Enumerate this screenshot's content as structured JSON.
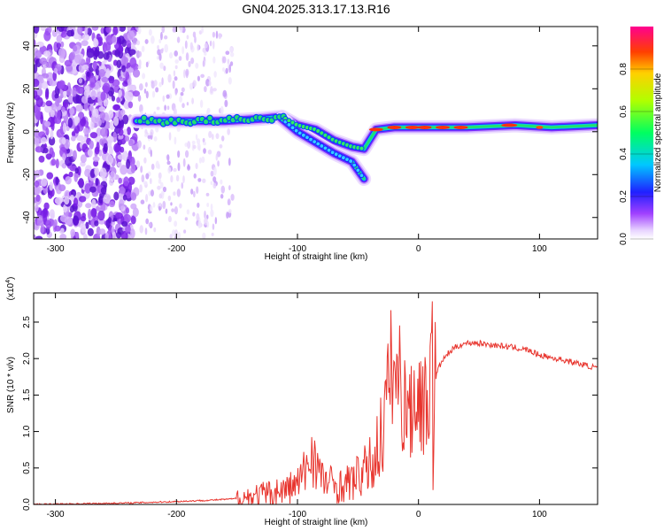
{
  "figure_title": "GN04.2025.313.17.13.R16",
  "chart_data": [
    {
      "type": "heatmap",
      "title": "GN04.2025.313.17.13.R16",
      "xlabel": "Height of straight line (km)",
      "ylabel": "Frequency (Hz)",
      "xlim": [
        -318,
        148
      ],
      "ylim": [
        -50,
        49
      ],
      "xticks": [
        -300,
        -200,
        -100,
        0,
        100
      ],
      "yticks": [
        -40,
        -20,
        0,
        20,
        40
      ],
      "ridge": {
        "x": [
          -233,
          -200,
          -160,
          -130,
          -113,
          -100,
          -85,
          -70,
          -55,
          -45,
          -35,
          -20,
          0,
          40,
          80,
          110,
          148
        ],
        "freq": [
          5,
          5,
          5,
          6,
          7,
          3,
          1,
          -4,
          -7,
          -8,
          1,
          2,
          2,
          2,
          3,
          2,
          3
        ]
      },
      "secondary_branch": {
        "x": [
          -113,
          -100,
          -85,
          -70,
          -55,
          -45
        ],
        "freq": [
          6,
          0,
          -5,
          -10,
          -14,
          -22
        ]
      },
      "colorbar": {
        "label": "Normalized spectral amplitude",
        "range": [
          0,
          1
        ],
        "ticks": [
          0.0,
          0.2,
          0.4,
          0.6,
          0.8
        ]
      }
    },
    {
      "type": "line",
      "xlabel": "Height of straight line (km)",
      "ylabel": "SNR (10 * v/v)",
      "multiplier": "(x10",
      "multiplier_exp": "4",
      "multiplier_close": ")",
      "xlim": [
        -318,
        148
      ],
      "ylim": [
        0,
        2.9
      ],
      "xticks": [
        -300,
        -200,
        -100,
        0,
        100
      ],
      "yticks": [
        "0.0",
        "0.5",
        "1.0",
        "1.5",
        "2.0",
        "2.5"
      ],
      "series": [
        {
          "name": "SNR",
          "color": "#e8352e",
          "x": [
            -318,
            -280,
            -240,
            -200,
            -170,
            -150,
            -140,
            -130,
            -120,
            -110,
            -100,
            -92,
            -88,
            -84,
            -80,
            -75,
            -70,
            -65,
            -60,
            -55,
            -50,
            -45,
            -40,
            -35,
            -30,
            -27,
            -24,
            -21,
            -18,
            -15,
            -12,
            -9,
            -6,
            -3,
            0,
            3,
            6,
            9,
            11,
            12,
            13,
            16,
            20,
            25,
            30,
            35,
            40,
            45,
            50,
            55,
            60,
            65,
            70,
            75,
            80,
            85,
            90,
            95,
            100,
            110,
            120,
            130,
            140,
            148
          ],
          "y": [
            0.0,
            0.01,
            0.02,
            0.04,
            0.06,
            0.08,
            0.1,
            0.13,
            0.16,
            0.2,
            0.28,
            0.5,
            0.75,
            0.55,
            0.35,
            0.3,
            0.28,
            0.25,
            0.28,
            0.32,
            0.38,
            0.45,
            0.55,
            0.7,
            1.0,
            1.3,
            1.7,
            2.0,
            1.6,
            1.8,
            1.3,
            1.5,
            1.2,
            1.6,
            1.4,
            1.5,
            1.3,
            1.6,
            2.85,
            0.65,
            1.7,
            1.85,
            1.98,
            2.08,
            2.15,
            2.19,
            2.21,
            2.22,
            2.21,
            2.2,
            2.19,
            2.18,
            2.17,
            2.16,
            2.15,
            2.13,
            2.12,
            2.08,
            2.05,
            2.01,
            1.98,
            1.94,
            1.9,
            1.87
          ]
        }
      ]
    }
  ]
}
